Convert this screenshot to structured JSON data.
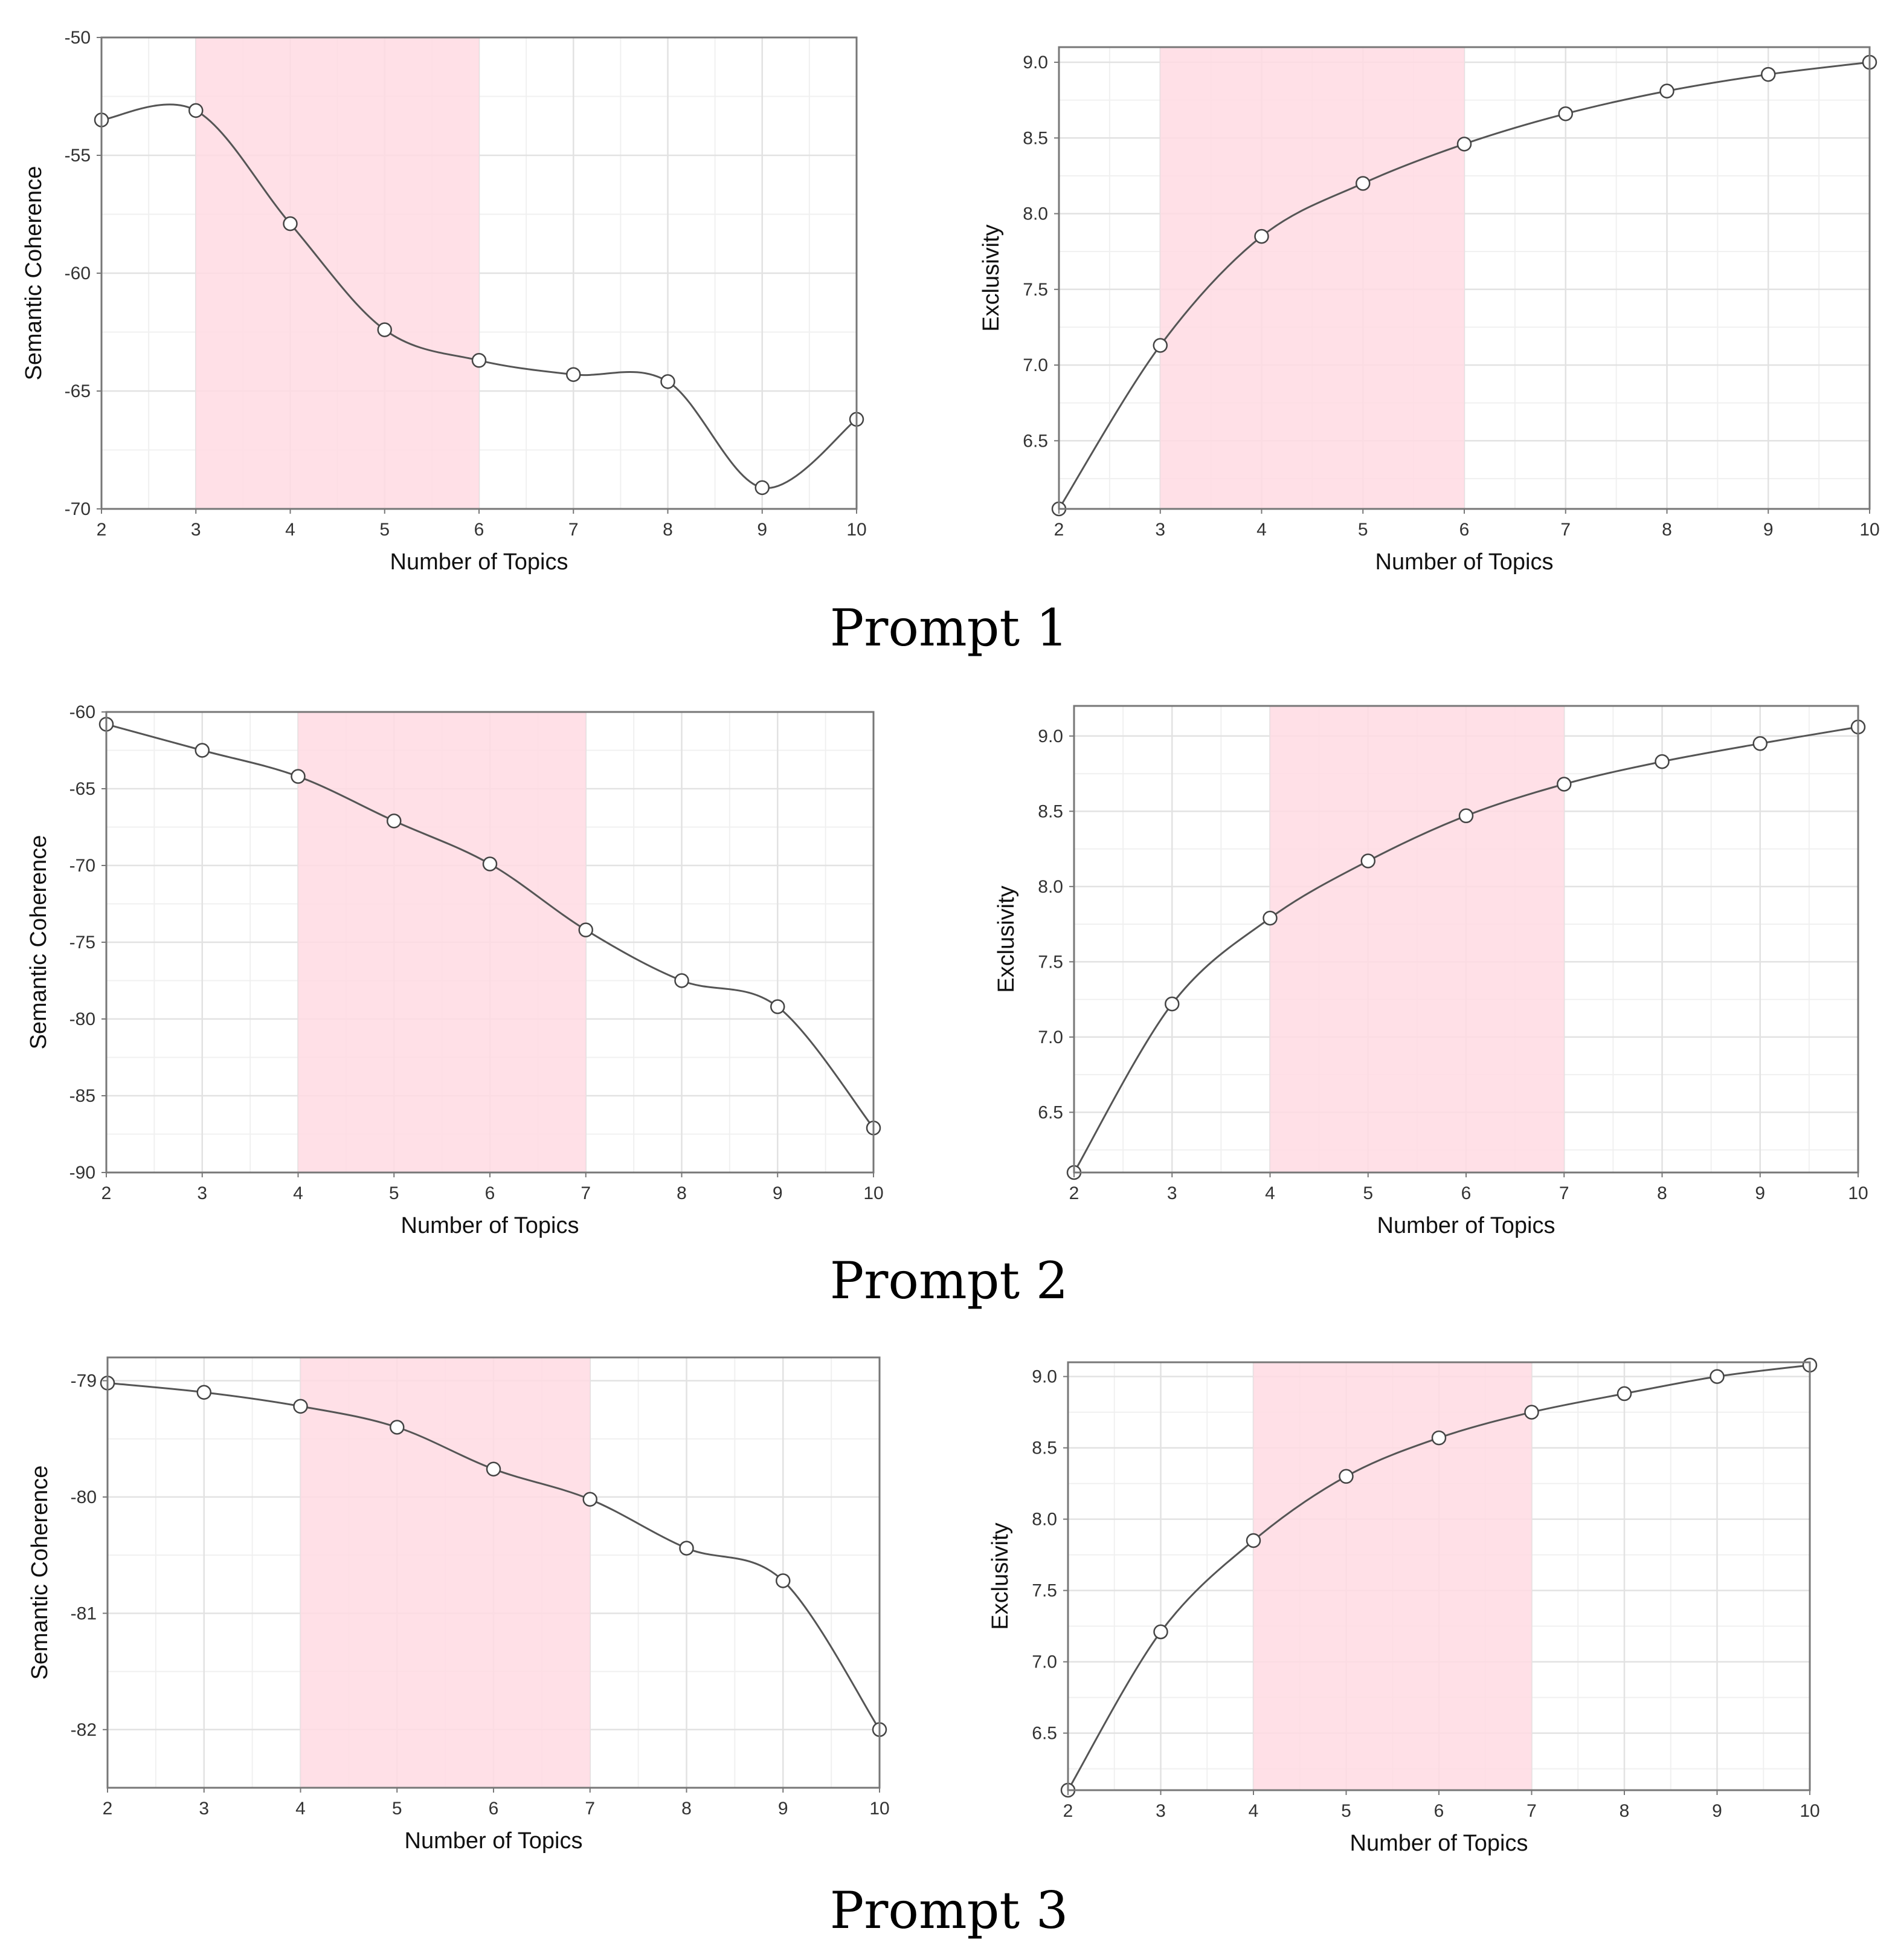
{
  "colors": {
    "band": "#ffdbe3",
    "line": "#555555",
    "grid_major": "#e2e2e2",
    "grid_minor": "#f0f0f0",
    "frame": "#777777",
    "point_fill": "#ffffff",
    "point_stroke": "#444444"
  },
  "panels": [
    {
      "caption": "Prompt 1",
      "charts": [
        {
          "type": "line",
          "title": "",
          "xlabel": "Number of Topics",
          "ylabel": "Semantic Coherence",
          "x": [
            2,
            3,
            4,
            5,
            6,
            7,
            8,
            9,
            10
          ],
          "values": [
            -53.5,
            -53.1,
            -57.9,
            -62.4,
            -63.7,
            -64.3,
            -64.6,
            -69.1,
            -66.2
          ],
          "xlim": [
            2,
            10
          ],
          "ylim": [
            -70,
            -50
          ],
          "xticks": [
            2,
            3,
            4,
            5,
            6,
            7,
            8,
            9,
            10
          ],
          "yticks": [
            -70,
            -65,
            -60,
            -55,
            -50
          ],
          "tick_labels_x": [
            "2",
            "3",
            "4",
            "5",
            "6",
            "7",
            "8",
            "9",
            "10"
          ],
          "tick_labels_y": [
            "-70",
            "-65",
            "-60",
            "-55",
            "-50"
          ],
          "highlight_range": [
            3,
            6
          ],
          "grid": true
        },
        {
          "type": "line",
          "title": "",
          "xlabel": "Number of Topics",
          "ylabel": "Exclusivity",
          "x": [
            2,
            3,
            4,
            5,
            6,
            7,
            8,
            9,
            10
          ],
          "values": [
            6.05,
            7.13,
            7.85,
            8.2,
            8.46,
            8.66,
            8.81,
            8.92,
            9.0
          ],
          "xlim": [
            2,
            10
          ],
          "ylim": [
            6.05,
            9.1
          ],
          "xticks": [
            2,
            3,
            4,
            5,
            6,
            7,
            8,
            9,
            10
          ],
          "yticks": [
            6.5,
            7.0,
            7.5,
            8.0,
            8.5,
            9.0
          ],
          "tick_labels_x": [
            "2",
            "3",
            "4",
            "5",
            "6",
            "7",
            "8",
            "9",
            "10"
          ],
          "tick_labels_y": [
            "6.5",
            "7.0",
            "7.5",
            "8.0",
            "8.5",
            "9.0"
          ],
          "highlight_range": [
            3,
            6
          ],
          "grid": true
        }
      ]
    },
    {
      "caption": "Prompt 2",
      "charts": [
        {
          "type": "line",
          "title": "",
          "xlabel": "Number of Topics",
          "ylabel": "Semantic Coherence",
          "x": [
            2,
            3,
            4,
            5,
            6,
            7,
            8,
            9,
            10
          ],
          "values": [
            -60.8,
            -62.5,
            -64.2,
            -67.1,
            -69.9,
            -74.2,
            -77.5,
            -79.2,
            -87.1
          ],
          "xlim": [
            2,
            10
          ],
          "ylim": [
            -90,
            -60
          ],
          "xticks": [
            2,
            3,
            4,
            5,
            6,
            7,
            8,
            9,
            10
          ],
          "yticks": [
            -90,
            -85,
            -80,
            -75,
            -70,
            -65,
            -60
          ],
          "tick_labels_x": [
            "2",
            "3",
            "4",
            "5",
            "6",
            "7",
            "8",
            "9",
            "10"
          ],
          "tick_labels_y": [
            "-90",
            "-85",
            "-80",
            "-75",
            "-70",
            "-65",
            "-60"
          ],
          "highlight_range": [
            4,
            7
          ],
          "grid": true
        },
        {
          "type": "line",
          "title": "",
          "xlabel": "Number of Topics",
          "ylabel": "Exclusivity",
          "x": [
            2,
            3,
            4,
            5,
            6,
            7,
            8,
            9,
            10
          ],
          "values": [
            6.1,
            7.22,
            7.79,
            8.17,
            8.47,
            8.68,
            8.83,
            8.95,
            9.06
          ],
          "xlim": [
            2,
            10
          ],
          "ylim": [
            6.1,
            9.2
          ],
          "xticks": [
            2,
            3,
            4,
            5,
            6,
            7,
            8,
            9,
            10
          ],
          "yticks": [
            6.5,
            7.0,
            7.5,
            8.0,
            8.5,
            9.0
          ],
          "tick_labels_x": [
            "2",
            "3",
            "4",
            "5",
            "6",
            "7",
            "8",
            "9",
            "10"
          ],
          "tick_labels_y": [
            "6.5",
            "7.0",
            "7.5",
            "8.0",
            "8.5",
            "9.0"
          ],
          "highlight_range": [
            4,
            7
          ],
          "grid": true
        }
      ]
    },
    {
      "caption": "Prompt 3",
      "charts": [
        {
          "type": "line",
          "title": "",
          "xlabel": "Number of Topics",
          "ylabel": "Semantic Coherence",
          "x": [
            2,
            3,
            4,
            5,
            6,
            7,
            8,
            9,
            10
          ],
          "values": [
            -79.02,
            -79.1,
            -79.22,
            -79.4,
            -79.76,
            -80.02,
            -80.44,
            -80.72,
            -82.0
          ],
          "xlim": [
            2,
            10
          ],
          "ylim": [
            -82.5,
            -78.8
          ],
          "xticks": [
            2,
            3,
            4,
            5,
            6,
            7,
            8,
            9,
            10
          ],
          "yticks": [
            -82,
            -81,
            -80,
            -79
          ],
          "tick_labels_x": [
            "2",
            "3",
            "4",
            "5",
            "6",
            "7",
            "8",
            "9",
            "10"
          ],
          "tick_labels_y": [
            "-82",
            "-81",
            "-80",
            "-79"
          ],
          "highlight_range": [
            4,
            7
          ],
          "grid": true
        },
        {
          "type": "line",
          "title": "",
          "xlabel": "Number of Topics",
          "ylabel": "Exclusivity",
          "x": [
            2,
            3,
            4,
            5,
            6,
            7,
            8,
            9,
            10
          ],
          "values": [
            6.1,
            7.21,
            7.85,
            8.3,
            8.57,
            8.75,
            8.88,
            9.0,
            9.08
          ],
          "xlim": [
            2,
            10
          ],
          "ylim": [
            6.1,
            9.1
          ],
          "xticks": [
            2,
            3,
            4,
            5,
            6,
            7,
            8,
            9,
            10
          ],
          "yticks": [
            6.5,
            7.0,
            7.5,
            8.0,
            8.5,
            9.0
          ],
          "tick_labels_x": [
            "2",
            "3",
            "4",
            "5",
            "6",
            "7",
            "8",
            "9",
            "10"
          ],
          "tick_labels_y": [
            "6.5",
            "7.0",
            "7.5",
            "8.0",
            "8.5",
            "9.0"
          ],
          "highlight_range": [
            4,
            7
          ],
          "grid": true
        }
      ]
    }
  ],
  "chart_data": [
    {
      "type": "line",
      "prompt": "Prompt 1",
      "xlabel": "Number of Topics",
      "ylabel": "Semantic Coherence",
      "x": [
        2,
        3,
        4,
        5,
        6,
        7,
        8,
        9,
        10
      ],
      "values": [
        -53.5,
        -53.1,
        -57.9,
        -62.4,
        -63.7,
        -64.3,
        -64.6,
        -69.1,
        -66.2
      ],
      "ylim": [
        -70,
        -50
      ],
      "highlight_range": [
        3,
        6
      ]
    },
    {
      "type": "line",
      "prompt": "Prompt 1",
      "xlabel": "Number of Topics",
      "ylabel": "Exclusivity",
      "x": [
        2,
        3,
        4,
        5,
        6,
        7,
        8,
        9,
        10
      ],
      "values": [
        6.05,
        7.13,
        7.85,
        8.2,
        8.46,
        8.66,
        8.81,
        8.92,
        9.0
      ],
      "ylim": [
        6.05,
        9.1
      ],
      "highlight_range": [
        3,
        6
      ]
    },
    {
      "type": "line",
      "prompt": "Prompt 2",
      "xlabel": "Number of Topics",
      "ylabel": "Semantic Coherence",
      "x": [
        2,
        3,
        4,
        5,
        6,
        7,
        8,
        9,
        10
      ],
      "values": [
        -60.8,
        -62.5,
        -64.2,
        -67.1,
        -69.9,
        -74.2,
        -77.5,
        -79.2,
        -87.1
      ],
      "ylim": [
        -90,
        -60
      ],
      "highlight_range": [
        4,
        7
      ]
    },
    {
      "type": "line",
      "prompt": "Prompt 2",
      "xlabel": "Number of Topics",
      "ylabel": "Exclusivity",
      "x": [
        2,
        3,
        4,
        5,
        6,
        7,
        8,
        9,
        10
      ],
      "values": [
        6.1,
        7.22,
        7.79,
        8.17,
        8.47,
        8.68,
        8.83,
        8.95,
        9.06
      ],
      "ylim": [
        6.1,
        9.2
      ],
      "highlight_range": [
        4,
        7
      ]
    },
    {
      "type": "line",
      "prompt": "Prompt 3",
      "xlabel": "Number of Topics",
      "ylabel": "Semantic Coherence",
      "x": [
        2,
        3,
        4,
        5,
        6,
        7,
        8,
        9,
        10
      ],
      "values": [
        -79.02,
        -79.1,
        -79.22,
        -79.4,
        -79.76,
        -80.02,
        -80.44,
        -80.72,
        -82.0
      ],
      "ylim": [
        -82.5,
        -78.8
      ],
      "highlight_range": [
        4,
        7
      ]
    },
    {
      "type": "line",
      "prompt": "Prompt 3",
      "xlabel": "Number of Topics",
      "ylabel": "Exclusivity",
      "x": [
        2,
        3,
        4,
        5,
        6,
        7,
        8,
        9,
        10
      ],
      "values": [
        6.1,
        7.21,
        7.85,
        8.3,
        8.57,
        8.75,
        8.88,
        9.0,
        9.08
      ],
      "ylim": [
        6.1,
        9.1
      ],
      "highlight_range": [
        4,
        7
      ]
    }
  ]
}
